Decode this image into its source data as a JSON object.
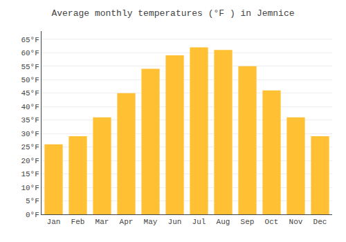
{
  "chart_data": {
    "type": "bar",
    "title": "Average monthly temperatures (°F ) in Jemnice",
    "categories": [
      "Jan",
      "Feb",
      "Mar",
      "Apr",
      "May",
      "Jun",
      "Jul",
      "Aug",
      "Sep",
      "Oct",
      "Nov",
      "Dec"
    ],
    "values": [
      26,
      29,
      36,
      45,
      54,
      59,
      62,
      61,
      55,
      46,
      36,
      29
    ],
    "color": "#FFC033",
    "ylim": [
      0,
      68
    ],
    "yticks": [
      {
        "value": 0,
        "label": "0°F"
      },
      {
        "value": 5,
        "label": "5°F"
      },
      {
        "value": 10,
        "label": "10°F"
      },
      {
        "value": 15,
        "label": "15°F"
      },
      {
        "value": 20,
        "label": "20°F"
      },
      {
        "value": 25,
        "label": "25°F"
      },
      {
        "value": 30,
        "label": "30°F"
      },
      {
        "value": 35,
        "label": "35°F"
      },
      {
        "value": 40,
        "label": "40°F"
      },
      {
        "value": 45,
        "label": "45°F"
      },
      {
        "value": 50,
        "label": "50°F"
      },
      {
        "value": 55,
        "label": "55°F"
      },
      {
        "value": 60,
        "label": "60°F"
      },
      {
        "value": 65,
        "label": "65°F"
      }
    ],
    "grid": true
  }
}
